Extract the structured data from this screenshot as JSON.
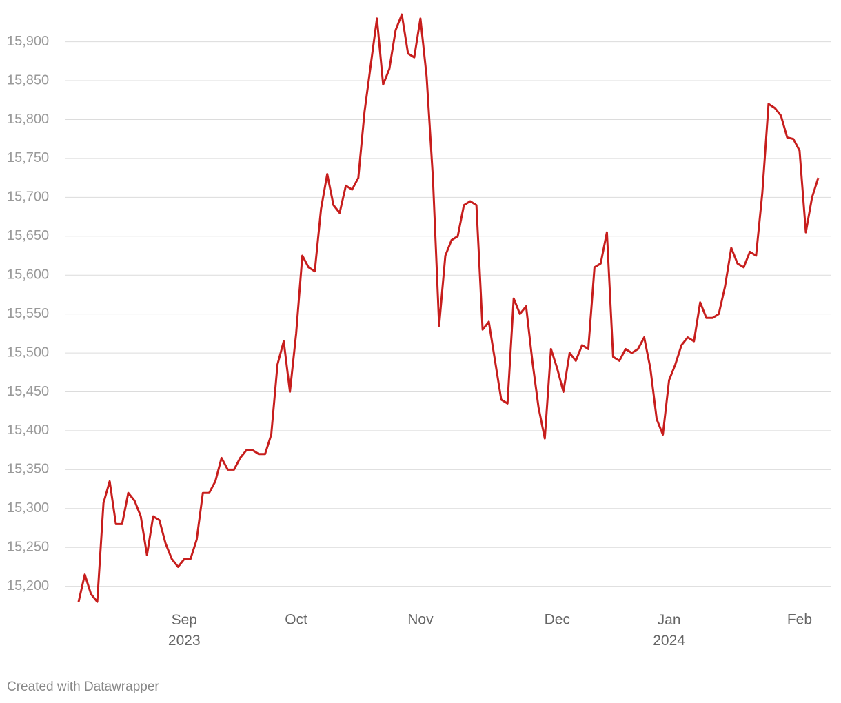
{
  "chart_data": {
    "type": "line",
    "categories": [
      null,
      null,
      null,
      null,
      null,
      null,
      null,
      null,
      null,
      null,
      null,
      null,
      null,
      null,
      null,
      null,
      null,
      "Sep 2023",
      null,
      null,
      null,
      null,
      null,
      null,
      null,
      null,
      null,
      null,
      null,
      null,
      null,
      null,
      null,
      null,
      null,
      "Oct",
      null,
      null,
      null,
      null,
      null,
      null,
      null,
      null,
      null,
      null,
      null,
      null,
      null,
      null,
      null,
      null,
      null,
      null,
      null,
      "Nov",
      null,
      null,
      null,
      null,
      null,
      null,
      null,
      null,
      null,
      null,
      null,
      null,
      null,
      null,
      null,
      null,
      null,
      null,
      null,
      null,
      null,
      "Dec",
      null,
      null,
      null,
      null,
      null,
      null,
      null,
      null,
      null,
      null,
      null,
      null,
      null,
      null,
      null,
      null,
      null,
      "Jan 2024",
      null,
      null,
      null,
      null,
      null,
      null,
      null,
      null,
      null,
      null,
      null,
      null,
      null,
      null,
      null,
      null,
      null,
      null,
      null,
      null,
      "Feb",
      null,
      null,
      null
    ],
    "series": [
      {
        "color": "#c71e1d",
        "values": [
          15180,
          15215,
          15190,
          15180,
          15307,
          15335,
          15280,
          15280,
          15320,
          15310,
          15290,
          15240,
          15290,
          15285,
          15255,
          15235,
          15225,
          15235,
          15235,
          15260,
          15320,
          15320,
          15335,
          15365,
          15350,
          15350,
          15365,
          15375,
          15375,
          15370,
          15370,
          15395,
          15485,
          15515,
          15450,
          15525,
          15625,
          15610,
          15605,
          15685,
          15730,
          15690,
          15680,
          15715,
          15710,
          15725,
          15810,
          15870,
          15930,
          15845,
          15865,
          15915,
          15935,
          15885,
          15880,
          15930,
          15855,
          15725,
          15535,
          15625,
          15645,
          15650,
          15690,
          15695,
          15690,
          15530,
          15540,
          15490,
          15440,
          15435,
          15570,
          15550,
          15560,
          15490,
          15430,
          15390,
          15505,
          15480,
          15450,
          15500,
          15490,
          15510,
          15505,
          15610,
          15615,
          15655,
          15495,
          15490,
          15505,
          15500,
          15505,
          15520,
          15480,
          15415,
          15395,
          15465,
          15485,
          15510,
          15520,
          15515,
          15565,
          15545,
          15545,
          15550,
          15585,
          15635,
          15615,
          15610,
          15630,
          15625,
          15705,
          15820,
          15815,
          15805,
          15777,
          15775,
          15760,
          15655,
          15700,
          15725
        ]
      }
    ],
    "ylim": [
      15174,
      15936
    ],
    "yticks": [
      {
        "value": 15200,
        "label": "15,200"
      },
      {
        "value": 15250,
        "label": "15,250"
      },
      {
        "value": 15300,
        "label": "15,300"
      },
      {
        "value": 15350,
        "label": "15,350"
      },
      {
        "value": 15400,
        "label": "15,400"
      },
      {
        "value": 15450,
        "label": "15,450"
      },
      {
        "value": 15500,
        "label": "15,500"
      },
      {
        "value": 15550,
        "label": "15,550"
      },
      {
        "value": 15600,
        "label": "15,600"
      },
      {
        "value": 15650,
        "label": "15,650"
      },
      {
        "value": 15700,
        "label": "15,700"
      },
      {
        "value": 15750,
        "label": "15,750"
      },
      {
        "value": 15800,
        "label": "15,800"
      },
      {
        "value": 15850,
        "label": "15,850"
      },
      {
        "value": 15900,
        "label": "15,900"
      }
    ],
    "grid": true,
    "credit": "Created with Datawrapper"
  }
}
